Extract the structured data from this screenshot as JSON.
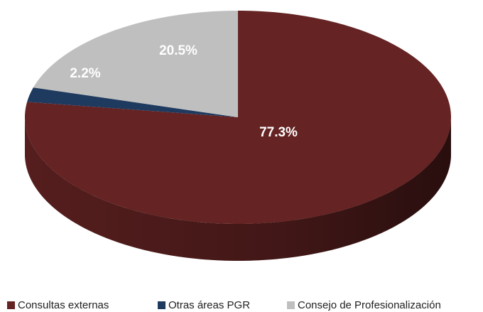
{
  "chart_data": {
    "type": "pie",
    "categories": [
      "Consultas externas",
      "Otras áreas PGR",
      "Consejo de Profesionalización"
    ],
    "values": [
      77.3,
      2.2,
      20.5
    ],
    "value_labels": [
      "77.3%",
      "2.2%",
      "20.5%"
    ],
    "colors": [
      "#652323",
      "#1f3a5f",
      "#bfbfbf"
    ],
    "legend": "bottom"
  }
}
